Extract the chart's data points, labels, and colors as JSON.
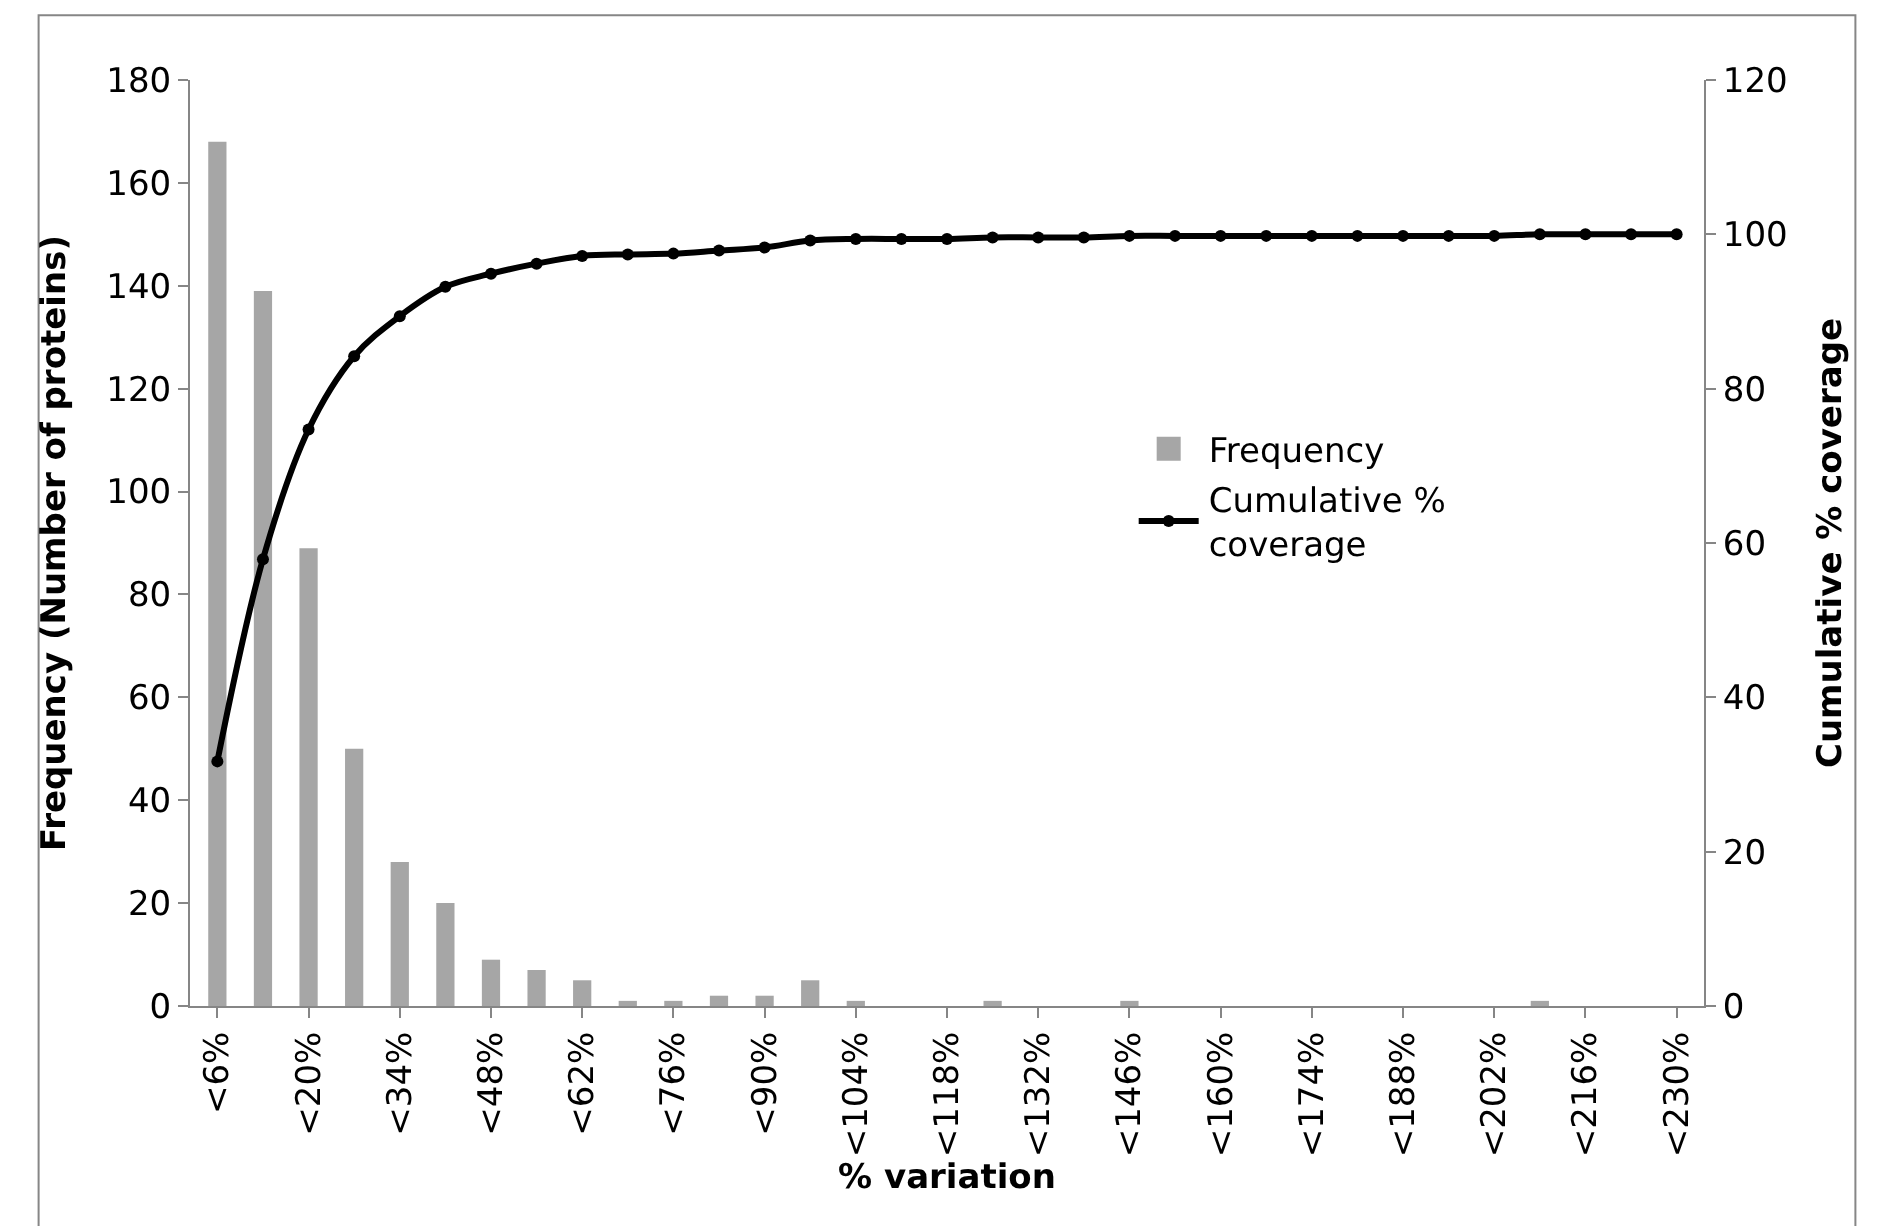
{
  "chart_data": {
    "type": "bar",
    "xlabel": "% variation",
    "ylabel": "Frequency (Number of proteins)",
    "y2label": "Cumulative % coverage",
    "categories": [
      "<6%",
      null,
      "<20%",
      null,
      "<34%",
      null,
      "<48%",
      null,
      "<62%",
      null,
      "<76%",
      null,
      "<90%",
      null,
      "<104%",
      null,
      "<118%",
      null,
      "<132%",
      null,
      "<146%",
      null,
      "<160%",
      null,
      "<174%",
      null,
      "<188%",
      null,
      "<202%",
      null,
      "<216%",
      null,
      "<230%"
    ],
    "series": [
      {
        "name": "Frequency",
        "color": "#a6a6a6",
        "values": [
          168,
          139,
          89,
          50,
          28,
          20,
          9,
          7,
          5,
          1,
          1,
          2,
          2,
          5,
          1,
          0,
          0,
          1,
          0,
          0,
          1,
          0,
          0,
          0,
          0,
          0,
          0,
          0,
          0,
          1,
          0,
          0,
          0
        ]
      },
      {
        "name": "Cumulative % coverage",
        "type": "line",
        "axis": "y2",
        "color": "#000000",
        "marker": "circle",
        "values": [
          31.7,
          57.9,
          74.7,
          84.2,
          89.4,
          93.2,
          94.9,
          96.2,
          97.2,
          97.4,
          97.5,
          97.9,
          98.3,
          99.2,
          99.4,
          99.4,
          99.4,
          99.6,
          99.6,
          99.6,
          99.8,
          99.8,
          99.8,
          99.8,
          99.8,
          99.8,
          99.8,
          99.8,
          99.8,
          100,
          100,
          100,
          100
        ]
      }
    ],
    "ylim": [
      0,
      180
    ],
    "yticks": [
      0,
      20,
      40,
      60,
      80,
      100,
      120,
      140,
      160,
      180
    ],
    "y2lim": [
      0,
      120
    ],
    "y2ticks": [
      0,
      20,
      40,
      60,
      80,
      100,
      120
    ],
    "legend": "right"
  }
}
